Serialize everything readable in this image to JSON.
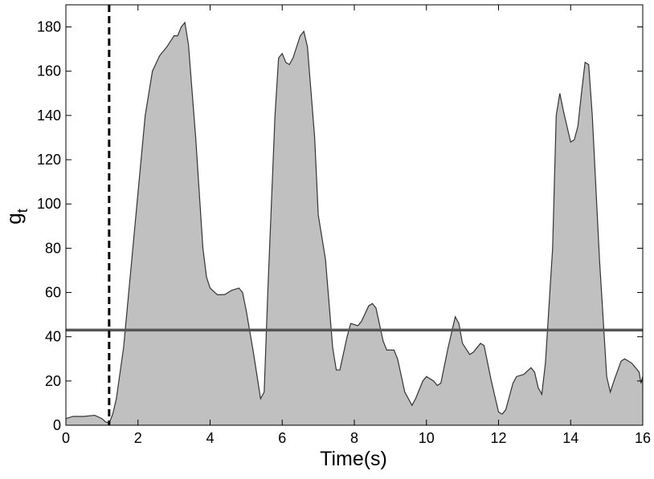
{
  "chart_data": {
    "type": "area",
    "xlabel": "Time(s)",
    "ylabel": "g",
    "ylabel_subscript": "t",
    "x": [
      0,
      0.2,
      0.5,
      0.8,
      1.0,
      1.1,
      1.2,
      1.3,
      1.4,
      1.6,
      1.8,
      2.0,
      2.2,
      2.4,
      2.6,
      2.8,
      3.0,
      3.1,
      3.2,
      3.3,
      3.4,
      3.6,
      3.8,
      3.9,
      4.0,
      4.2,
      4.4,
      4.6,
      4.8,
      4.9,
      5.0,
      5.2,
      5.4,
      5.5,
      5.6,
      5.8,
      5.9,
      6.0,
      6.1,
      6.2,
      6.3,
      6.5,
      6.6,
      6.7,
      6.9,
      7.0,
      7.2,
      7.4,
      7.5,
      7.6,
      7.8,
      7.9,
      8.1,
      8.2,
      8.4,
      8.5,
      8.6,
      8.8,
      8.9,
      9.1,
      9.2,
      9.4,
      9.6,
      9.7,
      9.9,
      10.0,
      10.2,
      10.3,
      10.4,
      10.6,
      10.8,
      10.9,
      11.0,
      11.2,
      11.3,
      11.5,
      11.6,
      11.8,
      12.0,
      12.1,
      12.2,
      12.4,
      12.5,
      12.7,
      12.9,
      13.0,
      13.1,
      13.2,
      13.3,
      13.5,
      13.6,
      13.7,
      13.8,
      14.0,
      14.1,
      14.2,
      14.3,
      14.4,
      14.5,
      14.6,
      14.8,
      15.0,
      15.1,
      15.2,
      15.4,
      15.5,
      15.7,
      15.9,
      15.95,
      16.0
    ],
    "values": [
      3,
      4,
      4,
      4.5,
      3,
      1.5,
      1,
      5,
      12,
      35,
      70,
      105,
      140,
      160,
      167,
      171,
      176,
      176,
      180,
      182,
      172,
      130,
      80,
      67,
      62,
      59,
      59,
      61,
      62,
      60,
      52,
      33,
      12,
      15,
      60,
      140,
      166,
      168,
      164,
      163,
      166,
      176,
      178,
      171,
      130,
      95,
      75,
      35,
      25,
      25,
      40,
      46,
      45,
      47,
      54,
      55,
      53,
      38,
      34,
      34,
      30,
      15,
      9,
      12,
      20,
      22,
      20,
      18,
      19,
      35,
      49,
      46,
      37,
      32,
      33,
      37,
      36,
      20,
      6,
      5,
      7,
      19,
      22,
      23,
      26,
      24,
      17,
      14,
      28,
      80,
      140,
      150,
      142,
      128,
      129,
      135,
      150,
      164,
      163,
      140,
      75,
      22,
      15,
      20,
      29,
      30,
      28,
      24,
      19,
      22
    ],
    "color": "#c0c0c0",
    "line_color": "#333333",
    "hline": 43,
    "hline_color": "#555555",
    "vline": 1.2,
    "xlim": [
      0,
      16
    ],
    "xticks": [
      0,
      2,
      4,
      6,
      8,
      10,
      12,
      14,
      16
    ],
    "ylim": [
      0,
      190
    ],
    "yticks": [
      0,
      20,
      40,
      60,
      80,
      100,
      120,
      140,
      160,
      180
    ]
  }
}
